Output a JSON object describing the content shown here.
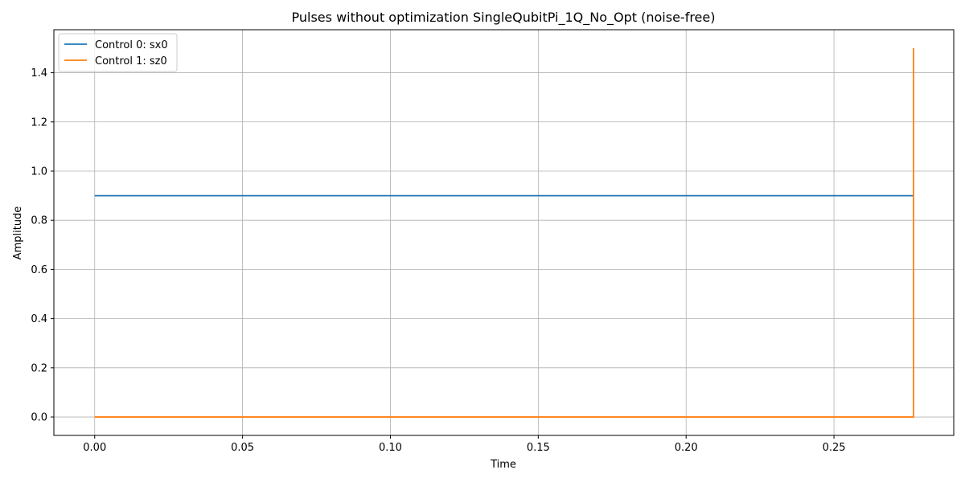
{
  "chart_data": {
    "type": "line",
    "step": true,
    "title": "Pulses without optimization SingleQubitPi_1Q_No_Opt (noise-free)",
    "xlabel": "Time",
    "ylabel": "Amplitude",
    "xlim": [
      -0.0138,
      0.2905
    ],
    "ylim": [
      -0.075,
      1.575
    ],
    "xticks": [
      0.0,
      0.05,
      0.1,
      0.15,
      0.2,
      0.25
    ],
    "xtick_labels": [
      "0.00",
      "0.05",
      "0.10",
      "0.15",
      "0.20",
      "0.25"
    ],
    "yticks": [
      0.0,
      0.2,
      0.4,
      0.6,
      0.8,
      1.0,
      1.2,
      1.4
    ],
    "ytick_labels": [
      "0.0",
      "0.2",
      "0.4",
      "0.6",
      "0.8",
      "1.0",
      "1.2",
      "1.4"
    ],
    "grid": true,
    "legend_position": "top-left",
    "series": [
      {
        "name": "Control 0: sx0",
        "color": "#1f77b4",
        "x": [
          0.0,
          0.2769
        ],
        "y": [
          0.9,
          0.9
        ]
      },
      {
        "name": "Control 1: sz0",
        "color": "#ff7f0e",
        "x": [
          0.0,
          0.2769,
          0.2769
        ],
        "y": [
          0.0,
          0.0,
          1.5
        ]
      }
    ]
  }
}
